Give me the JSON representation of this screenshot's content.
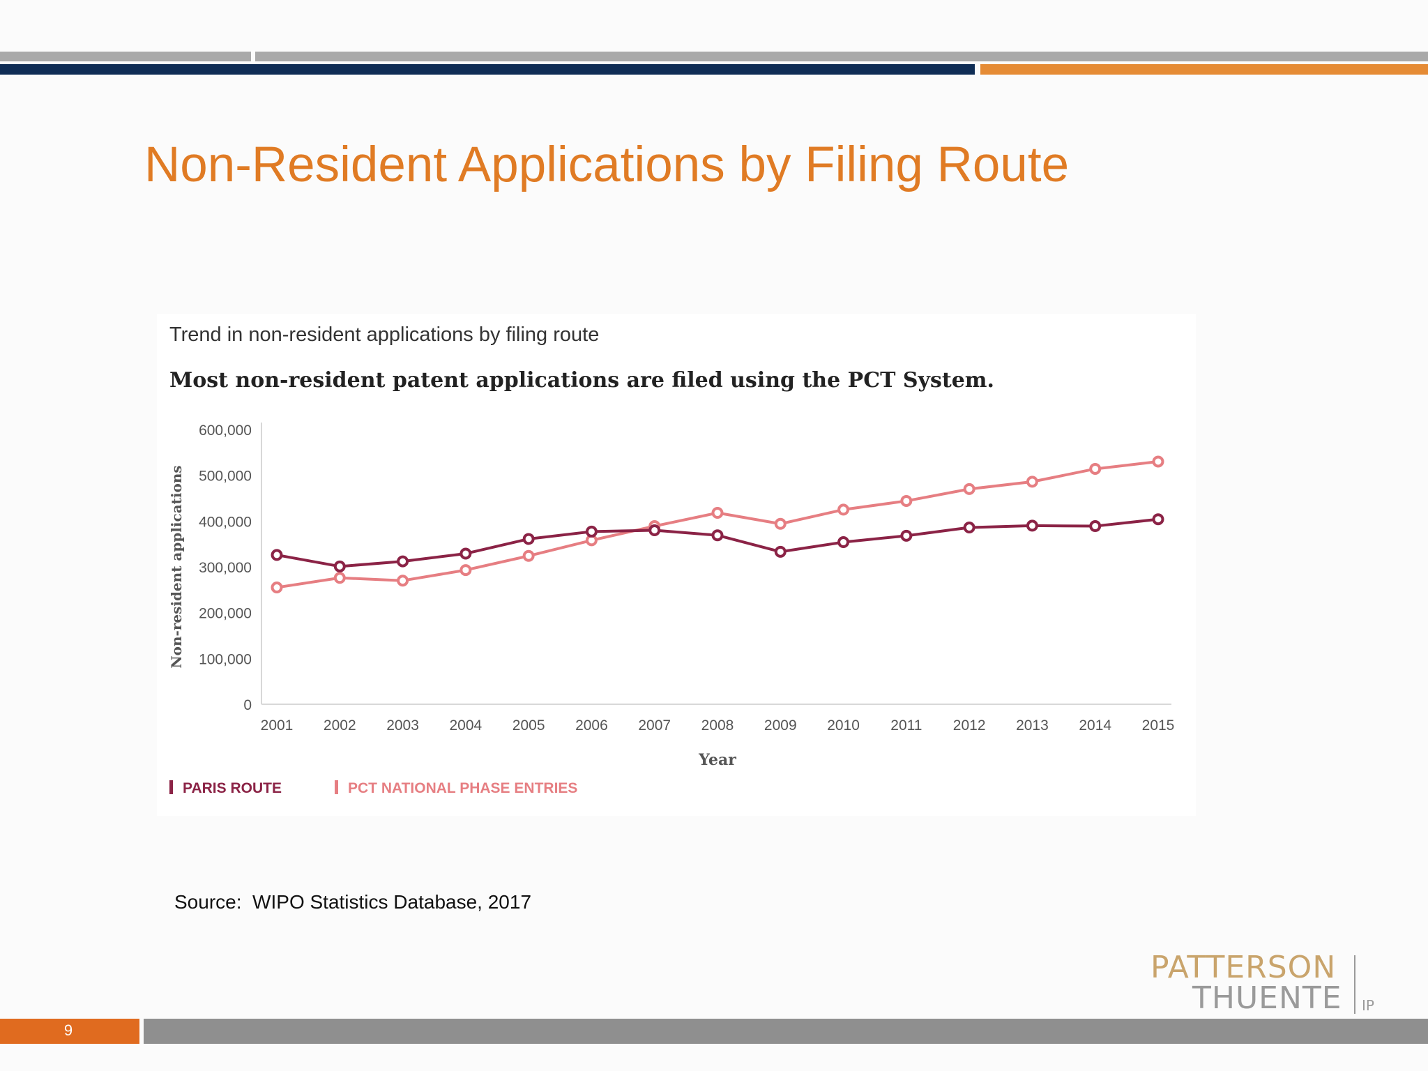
{
  "slide": {
    "title": "Non-Resident Applications by Filing Route",
    "source": "Source:  WIPO Statistics Database, 2017",
    "page_number": "9",
    "accent_color": "#e07b24",
    "navy_color": "#0f2d55",
    "orange_bar_color": "#e58b35",
    "gray_bar_color": "#a9a9a9",
    "footer_bar_color": "#8f8f8f"
  },
  "logo": {
    "line1": "PATTERSON",
    "line2": "THUENTE",
    "suffix": "IP"
  },
  "chart_data": {
    "type": "line",
    "title": "Trend in non-resident applications by filing route",
    "subtitle": "Most non-resident patent applications are filed using the PCT System.",
    "xlabel": "Year",
    "ylabel": "Non-resident applications",
    "x": [
      "2001",
      "2002",
      "2003",
      "2004",
      "2005",
      "2006",
      "2007",
      "2008",
      "2009",
      "2010",
      "2011",
      "2012",
      "2013",
      "2014",
      "2015"
    ],
    "ylim": [
      0,
      600000
    ],
    "yticks": [
      0,
      100000,
      200000,
      300000,
      400000,
      500000,
      600000
    ],
    "ytick_labels": [
      "0",
      "100,000",
      "200,000",
      "300,000",
      "400,000",
      "500,000",
      "600,000"
    ],
    "grid": false,
    "legend_position": "bottom-left",
    "series": [
      {
        "name": "PARIS ROUTE",
        "color": "#8b2346",
        "values": [
          326000,
          301000,
          312000,
          329000,
          361000,
          377000,
          380000,
          369000,
          333000,
          354000,
          368000,
          386000,
          390000,
          389000,
          404000
        ]
      },
      {
        "name": "PCT NATIONAL PHASE ENTRIES",
        "color": "#e67e82",
        "values": [
          255000,
          276000,
          270000,
          293000,
          324000,
          358000,
          389000,
          418000,
          394000,
          425000,
          444000,
          470000,
          486000,
          514000,
          530000
        ]
      }
    ]
  }
}
